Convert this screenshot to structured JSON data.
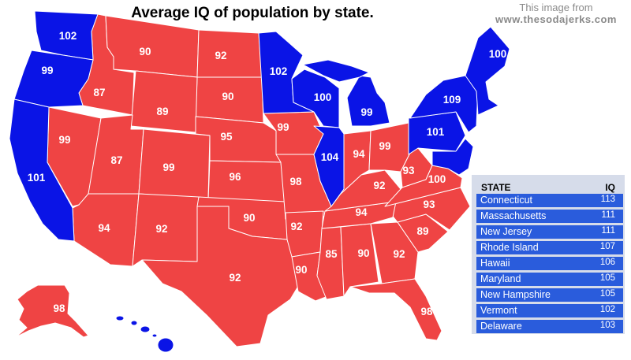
{
  "title": "Average IQ of population by state.",
  "credit": {
    "line1": "This image from",
    "line2": "www.thesodajerks.com"
  },
  "colors": {
    "above_100": "#0a14e6",
    "below_100": "#ef4444",
    "legend_row": "#2a5cdc",
    "legend_bg": "#d6dcea"
  },
  "map_labels": [
    {
      "state": "Washington",
      "iq": "102"
    },
    {
      "state": "Oregon",
      "iq": "99"
    },
    {
      "state": "California",
      "iq": "101"
    },
    {
      "state": "Nevada",
      "iq": "99"
    },
    {
      "state": "Idaho",
      "iq": "87"
    },
    {
      "state": "Montana",
      "iq": "90"
    },
    {
      "state": "Wyoming",
      "iq": "89"
    },
    {
      "state": "Utah",
      "iq": "87"
    },
    {
      "state": "Arizona",
      "iq": "94"
    },
    {
      "state": "Colorado",
      "iq": "99"
    },
    {
      "state": "New Mexico",
      "iq": "92"
    },
    {
      "state": "North Dakota",
      "iq": "92"
    },
    {
      "state": "South Dakota",
      "iq": "90"
    },
    {
      "state": "Nebraska",
      "iq": "95"
    },
    {
      "state": "Kansas",
      "iq": "96"
    },
    {
      "state": "Oklahoma",
      "iq": "90"
    },
    {
      "state": "Texas",
      "iq": "92"
    },
    {
      "state": "Minnesota",
      "iq": "102"
    },
    {
      "state": "Iowa",
      "iq": "99"
    },
    {
      "state": "Missouri",
      "iq": "98"
    },
    {
      "state": "Arkansas",
      "iq": "92"
    },
    {
      "state": "Louisiana",
      "iq": "90"
    },
    {
      "state": "Wisconsin",
      "iq": "100"
    },
    {
      "state": "Illinois",
      "iq": "104"
    },
    {
      "state": "Michigan",
      "iq": "99"
    },
    {
      "state": "Indiana",
      "iq": "94"
    },
    {
      "state": "Ohio",
      "iq": "99"
    },
    {
      "state": "Kentucky",
      "iq": "92"
    },
    {
      "state": "Tennessee",
      "iq": "94"
    },
    {
      "state": "Mississippi",
      "iq": "85"
    },
    {
      "state": "Alabama",
      "iq": "90"
    },
    {
      "state": "Georgia",
      "iq": "92"
    },
    {
      "state": "Florida",
      "iq": "98"
    },
    {
      "state": "South Carolina",
      "iq": "89"
    },
    {
      "state": "North Carolina",
      "iq": "93"
    },
    {
      "state": "West Virginia",
      "iq": "93"
    },
    {
      "state": "Virginia",
      "iq": "100"
    },
    {
      "state": "Pennsylvania",
      "iq": "101"
    },
    {
      "state": "New York",
      "iq": "109"
    },
    {
      "state": "Maine",
      "iq": "100"
    },
    {
      "state": "Alaska",
      "iq": "98"
    }
  ],
  "legend": {
    "header_state": "STATE",
    "header_iq": "IQ",
    "rows": [
      {
        "state": "Connecticut",
        "iq": "113"
      },
      {
        "state": "Massachusetts",
        "iq": "111"
      },
      {
        "state": "New Jersey",
        "iq": "111"
      },
      {
        "state": "Rhode Island",
        "iq": "107"
      },
      {
        "state": "Hawaii",
        "iq": "106"
      },
      {
        "state": "Maryland",
        "iq": "105"
      },
      {
        "state": "New Hampshire",
        "iq": "105"
      },
      {
        "state": "Vermont",
        "iq": "102"
      },
      {
        "state": "Delaware",
        "iq": "103"
      }
    ]
  }
}
